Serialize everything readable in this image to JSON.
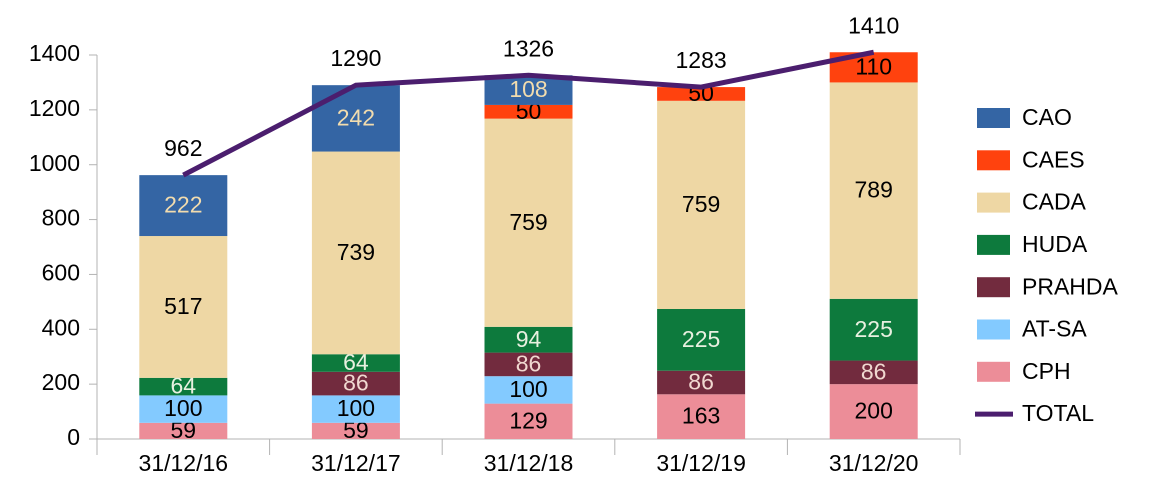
{
  "chart_data": {
    "type": "bar",
    "stacked": true,
    "categories": [
      "31/12/16",
      "31/12/17",
      "31/12/18",
      "31/12/19",
      "31/12/20"
    ],
    "series": [
      {
        "name": "CAO",
        "color": "#3465a4",
        "label_color": "#f2dcae",
        "values": [
          222,
          242,
          108,
          null,
          null
        ]
      },
      {
        "name": "CAES",
        "color": "#ff420e",
        "label_color": "#000000",
        "values": [
          null,
          null,
          50,
          50,
          110
        ]
      },
      {
        "name": "CADA",
        "color": "#eed7a4",
        "label_color": "#000000",
        "values": [
          517,
          739,
          759,
          759,
          789
        ]
      },
      {
        "name": "HUDA",
        "color": "#0d7a3d",
        "label_color": "#e8f0e0",
        "values": [
          64,
          64,
          94,
          225,
          225
        ]
      },
      {
        "name": "PRAHDA",
        "color": "#722b3e",
        "label_color": "#f0d8d0",
        "values": [
          null,
          86,
          86,
          86,
          86
        ]
      },
      {
        "name": "AT-SA",
        "color": "#83caff",
        "label_color": "#000000",
        "values": [
          100,
          100,
          100,
          null,
          null
        ]
      },
      {
        "name": "CPH",
        "color": "#ec8d98",
        "label_color": "#000000",
        "values": [
          59,
          59,
          129,
          163,
          200
        ]
      },
      {
        "name": "TOTAL",
        "type": "line",
        "color": "#4b1e6e",
        "label_color": "#000000",
        "values": [
          962,
          1290,
          1326,
          1283,
          1410
        ]
      }
    ],
    "ylim": [
      0,
      1400
    ],
    "yticks": [
      0,
      200,
      400,
      600,
      800,
      1000,
      1200,
      1400
    ],
    "grid": false,
    "legend": "right"
  }
}
